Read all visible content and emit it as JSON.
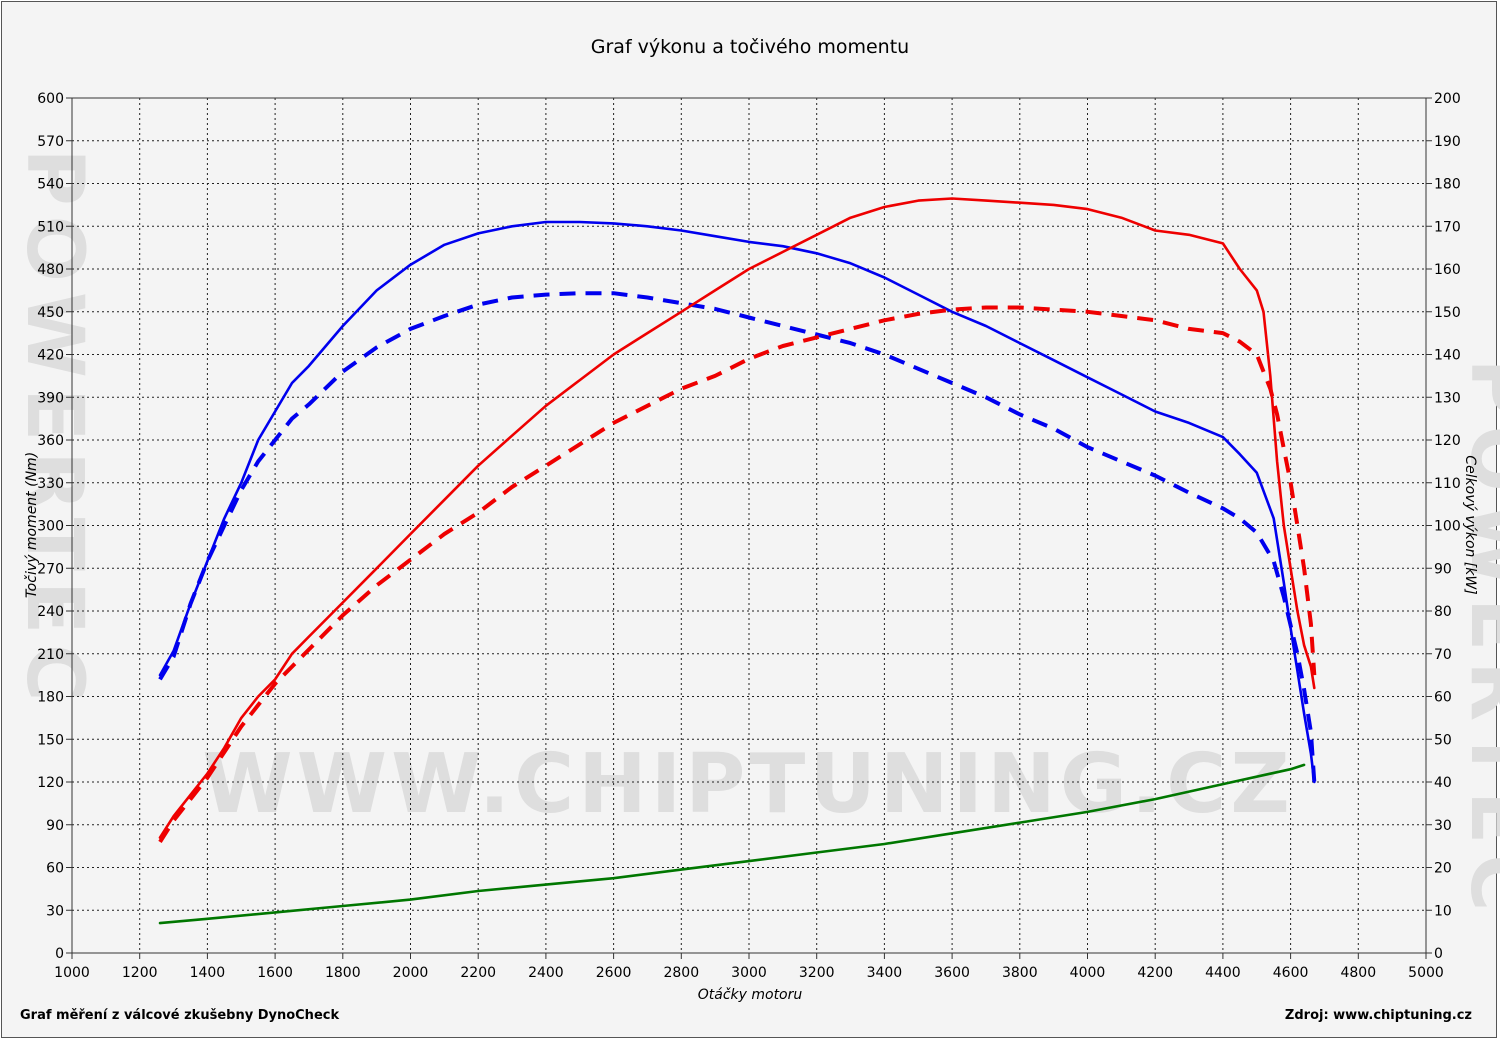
{
  "chart_data": {
    "type": "line",
    "title": "Graf výkonu a točivého momentu",
    "xlabel": "Otáčky motoru",
    "ylabel_left": "Točivý moment (Nm)",
    "ylabel_right": "Celkový výkon [kW]",
    "xlim": [
      1000,
      5000
    ],
    "ylim_left": [
      0,
      600
    ],
    "ylim_right": [
      0,
      200
    ],
    "x_ticks": [
      "1000",
      "1200",
      "1400",
      "1600",
      "1800",
      "2000",
      "2200",
      "2400",
      "2600",
      "2800",
      "3000",
      "3200",
      "3400",
      "3600",
      "3800",
      "4000",
      "4200",
      "4400",
      "4600",
      "4800",
      "5000"
    ],
    "y_ticks_left": [
      "0",
      "30",
      "60",
      "90",
      "120",
      "150",
      "180",
      "210",
      "240",
      "270",
      "300",
      "330",
      "360",
      "390",
      "420",
      "450",
      "480",
      "510",
      "540",
      "570",
      "600"
    ],
    "y_ticks_right": [
      "0",
      "10",
      "20",
      "30",
      "40",
      "50",
      "60",
      "70",
      "80",
      "90",
      "100",
      "110",
      "120",
      "130",
      "140",
      "150",
      "160",
      "170",
      "180",
      "190",
      "200"
    ],
    "grid": true,
    "series": [
      {
        "axis": "left",
        "color": "#0000ee",
        "dash": "solid",
        "x": [
          1260,
          1300,
          1350,
          1400,
          1450,
          1500,
          1550,
          1600,
          1650,
          1700,
          1800,
          1900,
          2000,
          2100,
          2200,
          2300,
          2400,
          2500,
          2600,
          2700,
          2800,
          2900,
          3000,
          3100,
          3200,
          3300,
          3400,
          3500,
          3600,
          3700,
          3800,
          3900,
          4000,
          4100,
          4200,
          4300,
          4400,
          4450,
          4500,
          4550,
          4580,
          4600,
          4620,
          4640,
          4660,
          4670
        ],
        "y": [
          195,
          212,
          245,
          275,
          305,
          330,
          360,
          380,
          400,
          412,
          440,
          465,
          483,
          497,
          505,
          510,
          513,
          513,
          512,
          510,
          507,
          503,
          499,
          496,
          491,
          484,
          474,
          462,
          450,
          440,
          428,
          416,
          404,
          392,
          380,
          372,
          362,
          350,
          337,
          305,
          260,
          228,
          198,
          168,
          140,
          120
        ]
      },
      {
        "axis": "left",
        "color": "#0000ee",
        "dash": "dashed",
        "x": [
          1260,
          1300,
          1350,
          1400,
          1450,
          1500,
          1550,
          1600,
          1650,
          1700,
          1800,
          1900,
          2000,
          2100,
          2200,
          2300,
          2400,
          2500,
          2600,
          2700,
          2800,
          2900,
          3000,
          3100,
          3200,
          3300,
          3400,
          3500,
          3600,
          3700,
          3800,
          3900,
          4000,
          4100,
          4200,
          4300,
          4400,
          4450,
          4500,
          4550,
          4580,
          4600,
          4620,
          4640,
          4660,
          4670
        ],
        "y": [
          192,
          208,
          245,
          275,
          300,
          325,
          345,
          360,
          375,
          385,
          408,
          425,
          438,
          447,
          455,
          460,
          462,
          463,
          463,
          460,
          456,
          452,
          446,
          440,
          434,
          428,
          420,
          410,
          400,
          390,
          378,
          368,
          355,
          345,
          335,
          323,
          312,
          305,
          295,
          275,
          250,
          230,
          210,
          185,
          155,
          120
        ]
      },
      {
        "axis": "right",
        "color": "#ee0000",
        "dash": "solid",
        "x": [
          1260,
          1300,
          1350,
          1400,
          1450,
          1500,
          1550,
          1600,
          1650,
          1700,
          1800,
          1900,
          2000,
          2100,
          2200,
          2300,
          2400,
          2500,
          2600,
          2700,
          2800,
          2900,
          3000,
          3100,
          3200,
          3300,
          3400,
          3500,
          3600,
          3700,
          3800,
          3900,
          4000,
          4100,
          4200,
          4300,
          4400,
          4450,
          4500,
          4520,
          4540,
          4560,
          4580,
          4600,
          4620,
          4640,
          4660,
          4670
        ],
        "y": [
          27,
          32,
          37,
          42,
          48,
          55,
          60,
          64,
          70,
          74,
          82,
          90,
          98,
          106,
          114,
          121,
          128,
          134,
          140,
          145,
          150,
          155,
          160,
          164,
          168,
          172,
          174.5,
          176,
          176.5,
          176,
          175.5,
          175,
          174,
          172,
          169,
          168,
          166,
          160,
          155,
          150,
          135,
          115,
          100,
          90,
          80,
          72,
          67,
          62
        ]
      },
      {
        "axis": "right",
        "color": "#ee0000",
        "dash": "dashed",
        "x": [
          1260,
          1300,
          1350,
          1400,
          1450,
          1500,
          1550,
          1600,
          1650,
          1700,
          1800,
          1900,
          2000,
          2100,
          2200,
          2300,
          2400,
          2500,
          2600,
          2700,
          2800,
          2900,
          3000,
          3100,
          3200,
          3300,
          3400,
          3500,
          3600,
          3700,
          3800,
          3900,
          4000,
          4100,
          4200,
          4300,
          4400,
          4450,
          4500,
          4520,
          4540,
          4560,
          4580,
          4600,
          4620,
          4640,
          4660,
          4670
        ],
        "y": [
          26,
          31,
          36,
          41,
          47,
          53,
          58,
          63,
          67,
          71,
          79,
          86,
          92,
          98,
          103,
          109,
          114,
          119,
          124,
          128,
          132,
          135,
          139,
          142,
          144,
          146,
          148,
          149.5,
          150.5,
          151,
          151,
          150.5,
          150,
          149,
          148,
          146,
          145,
          143,
          140,
          136,
          132,
          126,
          118,
          110,
          100,
          90,
          77,
          65
        ]
      },
      {
        "axis": "right",
        "color": "#007700",
        "dash": "solid",
        "x": [
          1260,
          1400,
          1600,
          1800,
          2000,
          2200,
          2400,
          2600,
          2800,
          3000,
          3200,
          3400,
          3600,
          3800,
          4000,
          4200,
          4400,
          4600,
          4640
        ],
        "y": [
          7,
          8,
          9.5,
          11,
          12.5,
          14.5,
          16,
          17.5,
          19.5,
          21.5,
          23.5,
          25.5,
          28,
          30.5,
          33,
          36,
          39.5,
          43,
          44
        ]
      }
    ]
  },
  "watermark": {
    "url_text": "WWW.CHIPTUNING.CZ",
    "side_text": "POWERTEC"
  },
  "footer": {
    "left": "Graf měření z válcové zkušebny DynoCheck",
    "right": "Zdroj: www.chiptuning.cz"
  }
}
